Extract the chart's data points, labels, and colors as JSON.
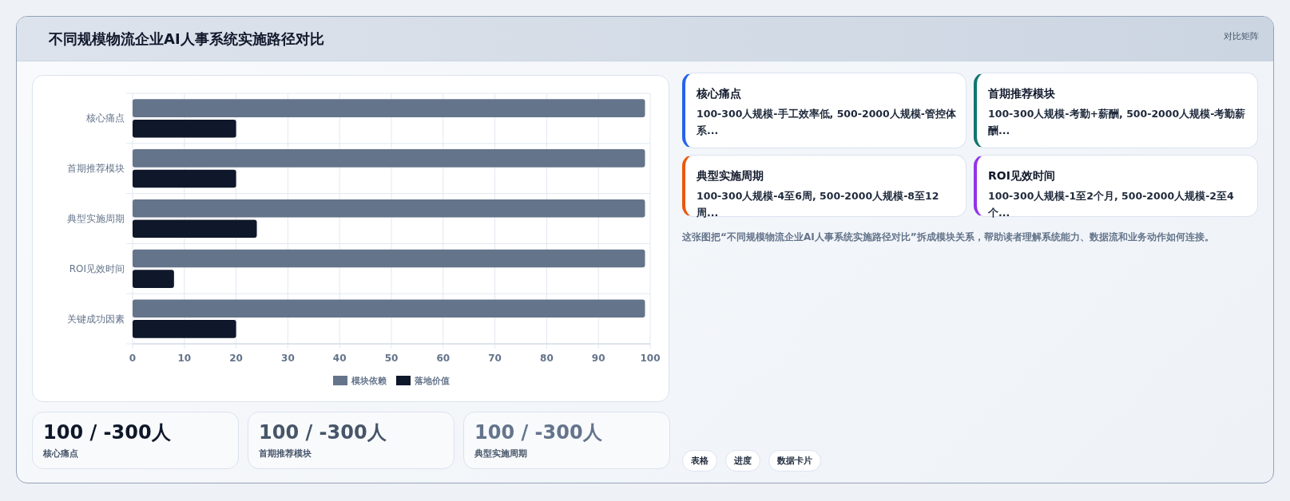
{
  "chart_data": [
    {
      "type": "other",
      "title": "不同规模物流企业AI人事系统实施路径对比",
      "subtitle": "对比矩阵"
    },
    {
      "type": "bar",
      "orientation": "horizontal",
      "categories": [
        "核心痛点",
        "首期推荐模块",
        "典型实施周期",
        "ROI见效时间",
        "关键成功因素"
      ],
      "series": [
        {
          "name": "模块依赖",
          "color": "#64748b",
          "values": [
            99,
            99,
            99,
            99,
            99
          ]
        },
        {
          "name": "落地价值",
          "color": "#0f172a",
          "values": [
            20,
            20,
            24,
            8,
            20
          ]
        }
      ],
      "xlim": [
        0,
        100
      ],
      "xticks": [
        0,
        10,
        20,
        30,
        40,
        50,
        60,
        70,
        80,
        90,
        100
      ],
      "grid": true,
      "legend": "bottom"
    },
    {
      "type": "other",
      "annotations": [
        "这张图把“不同规模物流企业AI人事系统实施路径对比”拆成模块关系，帮助读者理解系统能力、数据流和业务动作如何连接。"
      ]
    },
    {
      "type": "other",
      "title": "核心痛点",
      "annotations": [
        "100-300人规模-手工效率低, 500-2000人规模-管控体系..."
      ]
    },
    {
      "type": "other",
      "title": "首期推荐模块",
      "annotations": [
        "100-300人规模-考勤+薪酬, 500-2000人规模-考勤薪酬..."
      ]
    },
    {
      "type": "other",
      "title": "典型实施周期",
      "annotations": [
        "100-300人规模-4至6周, 500-2000人规模-8至12周..."
      ]
    },
    {
      "type": "other",
      "title": "ROI见效时间",
      "annotations": [
        "100-300人规模-1至2个月, 500-2000人规模-2至4个..."
      ]
    },
    {
      "type": "other",
      "title": "100 / -300人",
      "annotations": [
        "核心痛点"
      ]
    },
    {
      "type": "other",
      "title": "100 / -300人",
      "annotations": [
        "首期推荐模块"
      ]
    },
    {
      "type": "other",
      "title": "100 / -300人",
      "annotations": [
        "典型实施周期"
      ]
    },
    {
      "type": "other",
      "annotations": [
        "表格",
        "进度",
        "数据卡片"
      ]
    }
  ]
}
